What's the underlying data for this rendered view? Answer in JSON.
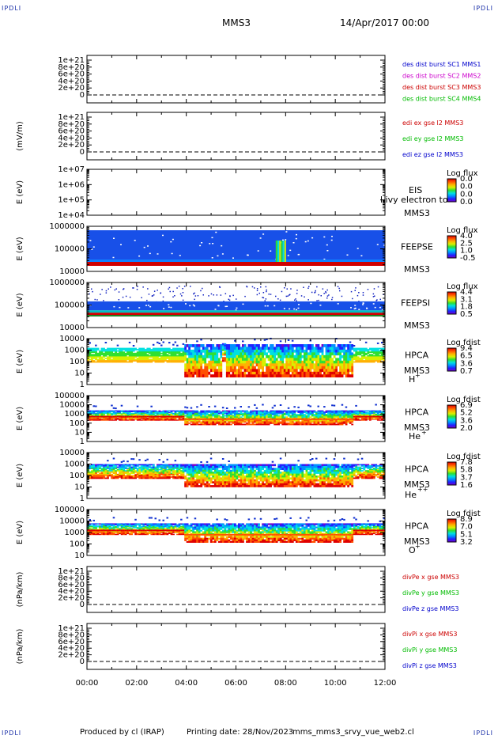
{
  "corner_label": "IPDLI",
  "header": {
    "spacecraft": "MMS3",
    "date": "14/Apr/2017 00:00"
  },
  "footer": {
    "produced_by": "Produced by cl (IRAP)",
    "printing_date": "Printing date: 28/Nov/2023",
    "script_name": "mms_mms3_srvy_vue_web2.cl"
  },
  "chart_data": {
    "type": "heatmap",
    "x_ticks": [
      "00:00",
      "02:00",
      "04:00",
      "06:00",
      "08:00",
      "10:00",
      "12:00"
    ],
    "x_range_hours": [
      0,
      12
    ],
    "panels": [
      {
        "id": "dist",
        "kind": "line",
        "ylabel": "",
        "yticks": [
          "1e+21",
          "8e+20",
          "6e+20",
          "4e+20",
          "2e+20",
          "0"
        ],
        "legend": [
          {
            "text": "des dist burst SC1 MMS1",
            "color": "#0000cc"
          },
          {
            "text": "des dist burst SC2 MMS2",
            "color": "#cc00cc"
          },
          {
            "text": "des dist burst SC3 MMS3",
            "color": "#cc0000"
          },
          {
            "text": "des dist burst SC4 MMS4",
            "color": "#00bb00"
          }
        ]
      },
      {
        "id": "edi",
        "kind": "line",
        "ylabel": "(mV/m)",
        "yticks": [
          "1e+21",
          "8e+20",
          "6e+20",
          "4e+20",
          "2e+20",
          "0"
        ],
        "legend": [
          {
            "text": "edi ex gse l2 MMS3",
            "color": "#cc0000"
          },
          {
            "text": "edi ey gse l2 MMS3",
            "color": "#00bb00"
          },
          {
            "text": "edi ez gse l2 MMS3",
            "color": "#0000cc"
          }
        ]
      },
      {
        "id": "eis",
        "kind": "spec",
        "ylabel": "E (eV)",
        "yticks": [
          "1e+07",
          "1e+06",
          "1e+05",
          "1e+04"
        ],
        "inst": "EIS",
        "inst2": "MMS3",
        "overlay": "l ivy electron to",
        "cbar_title": "Log flux",
        "cbar_ticks": [
          "0.0",
          "0.0",
          "0.0",
          "0.0"
        ]
      },
      {
        "id": "feepse",
        "kind": "spec",
        "ylabel": "E (eV)",
        "yticks": [
          "1000000",
          "100000",
          "10000"
        ],
        "inst": "FEEPSE",
        "inst2": "MMS3",
        "cbar_title": "Log flux",
        "cbar_ticks": [
          "4.0",
          "2.5",
          "1.0",
          "-0.5"
        ]
      },
      {
        "id": "feepsi",
        "kind": "spec",
        "ylabel": "E (eV)",
        "yticks": [
          "1000000",
          "100000",
          "10000"
        ],
        "inst": "FEEPSI",
        "inst2": "MMS3",
        "cbar_title": "Log flux",
        "cbar_ticks": [
          "4.4",
          "3.1",
          "1.8",
          "0.5"
        ]
      },
      {
        "id": "hpca_h",
        "kind": "spec",
        "ylabel": "E (eV)",
        "yticks": [
          "10000",
          "1000",
          "100",
          "10",
          "1"
        ],
        "inst": "HPCA",
        "inst2": "MMS3",
        "species": "H",
        "charge": "+",
        "cbar_title": "Log fdist",
        "cbar_ticks": [
          "9.4",
          "6.5",
          "3.6",
          "0.7"
        ]
      },
      {
        "id": "hpca_he",
        "kind": "spec",
        "ylabel": "E (eV)",
        "yticks": [
          "100000",
          "10000",
          "1000",
          "100",
          "10",
          "1"
        ],
        "inst": "HPCA",
        "inst2": "MMS3",
        "species": "He",
        "charge": "+",
        "cbar_title": "Log fdist",
        "cbar_ticks": [
          "6.9",
          "5.2",
          "3.6",
          "2.0"
        ]
      },
      {
        "id": "hpca_he2",
        "kind": "spec",
        "ylabel": "E (eV)",
        "yticks": [
          "10000",
          "1000",
          "100",
          "10",
          "1"
        ],
        "inst": "HPCA",
        "inst2": "MMS3",
        "species": "He",
        "charge": "++",
        "cbar_title": "Log fdist",
        "cbar_ticks": [
          "7.8",
          "5.8",
          "3.7",
          "1.6"
        ]
      },
      {
        "id": "hpca_o",
        "kind": "spec",
        "ylabel": "E (eV)",
        "yticks": [
          "100000",
          "10000",
          "1000",
          "100",
          "10"
        ],
        "inst": "HPCA",
        "inst2": "MMS3",
        "species": "O",
        "charge": "+",
        "cbar_title": "Log fdist",
        "cbar_ticks": [
          "8.9",
          "7.0",
          "5.1",
          "3.2"
        ]
      },
      {
        "id": "divpe",
        "kind": "line",
        "ylabel": "(nPa/km)",
        "yticks": [
          "1e+21",
          "8e+20",
          "6e+20",
          "4e+20",
          "2e+20",
          "0"
        ],
        "legend": [
          {
            "text": "divPe x gse MMS3",
            "color": "#cc0000"
          },
          {
            "text": "divPe y gse MMS3",
            "color": "#00bb00"
          },
          {
            "text": "divPe z gse MMS3",
            "color": "#0000cc"
          }
        ]
      },
      {
        "id": "divpi",
        "kind": "line",
        "ylabel": "(nPa/km)",
        "yticks": [
          "1e+21",
          "8e+20",
          "6e+20",
          "4e+20",
          "2e+20",
          "0"
        ],
        "legend": [
          {
            "text": "divPi x gse MMS3",
            "color": "#cc0000"
          },
          {
            "text": "divPi y gse MMS3",
            "color": "#00bb00"
          },
          {
            "text": "divPi z gse MMS3",
            "color": "#0000cc"
          }
        ]
      }
    ]
  }
}
